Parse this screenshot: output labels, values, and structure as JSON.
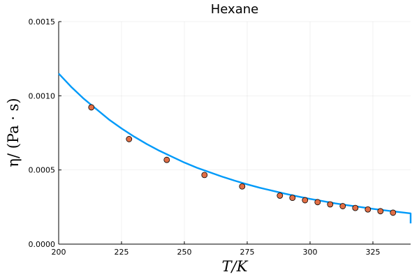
{
  "chart_data": {
    "type": "scatter",
    "title": "Hexane",
    "xlabel": "T/K",
    "ylabel": "η/ (Pa · s)",
    "xlim": [
      200,
      340
    ],
    "ylim": [
      0,
      0.0015
    ],
    "xticks": [
      200,
      225,
      250,
      275,
      300,
      325
    ],
    "xtick_labels": [
      "200",
      "225",
      "250",
      "275",
      "300",
      "325"
    ],
    "yticks": [
      0,
      0.0005,
      0.001,
      0.0015
    ],
    "ytick_labels": [
      "0.0000",
      "0.0005",
      "0.0010",
      "0.0015"
    ],
    "grid": true,
    "legend": false,
    "series": [
      {
        "kind": "line",
        "color": "#009AF9",
        "x": [
          200,
          205,
          210,
          215,
          220,
          225,
          230,
          235,
          240,
          245,
          250,
          255,
          260,
          265,
          270,
          275,
          280,
          285,
          290,
          295,
          300,
          305,
          310,
          315,
          320,
          325,
          330,
          335,
          340,
          340
        ],
        "y": [
          0.00115,
          0.00106,
          0.00098,
          0.00091,
          0.00084,
          0.00078,
          0.000725,
          0.000675,
          0.00063,
          0.00059,
          0.00055,
          0.000515,
          0.000485,
          0.000455,
          0.000428,
          0.000403,
          0.00038,
          0.00036,
          0.00034,
          0.000322,
          0.000305,
          0.00029,
          0.000275,
          0.000262,
          0.00025,
          0.000238,
          0.000227,
          0.000217,
          0.000207,
          0.00014
        ]
      },
      {
        "kind": "scatter",
        "color": "#E26F46",
        "x": [
          213,
          228,
          243,
          258,
          273,
          288,
          293,
          298,
          303,
          308,
          313,
          318,
          323,
          328,
          333
        ],
        "y": [
          0.000922,
          0.000708,
          0.000568,
          0.000466,
          0.000389,
          0.000327,
          0.000312,
          0.000296,
          0.000283,
          0.000268,
          0.000256,
          0.000244,
          0.000234,
          0.000222,
          0.000212
        ]
      }
    ]
  }
}
